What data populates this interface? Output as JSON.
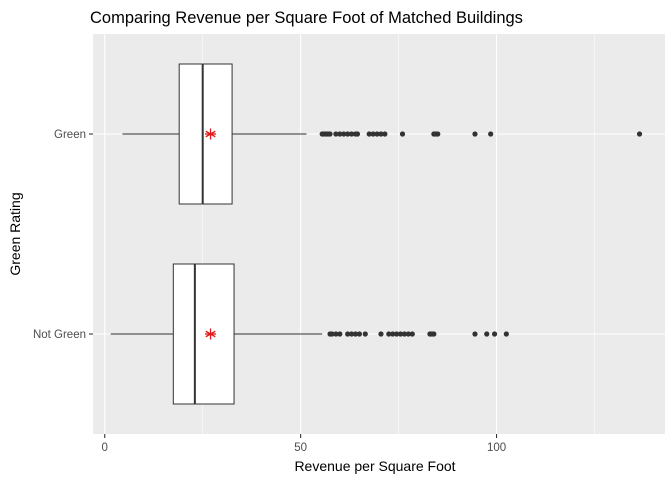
{
  "chart_data": {
    "type": "boxplot",
    "title": "Comparing Revenue per Square Foot of Matched Buildings",
    "xlabel": "Revenue per Square Foot",
    "ylabel": "Green Rating",
    "orientation": "horizontal",
    "xlim": [
      -3,
      143
    ],
    "x_ticks": [
      0,
      50,
      100
    ],
    "x_tick_labels": [
      "0",
      "50",
      "100"
    ],
    "grid": true,
    "panel_background": "#ebebeb",
    "grid_color": "#ffffff",
    "box_fill": "#ffffff",
    "box_stroke": "#333333",
    "outlier_color": "#333333",
    "mean_marker_color": "#e31a1c",
    "mean_marker": "asterisk",
    "categories": [
      "Green",
      "Not Green"
    ],
    "boxes": [
      {
        "category": "Green",
        "min": 4.5,
        "q1": 19.0,
        "median": 25.0,
        "q3": 32.5,
        "max": 51.5,
        "mean": 27.0,
        "outliers": [
          55.5,
          56.0,
          56.5,
          57.0,
          57.5,
          59.0,
          60.0,
          61.0,
          62.0,
          63.0,
          64.0,
          64.5,
          67.5,
          68.5,
          69.5,
          70.5,
          71.5,
          76.0,
          84.0,
          84.5,
          85.0,
          94.5,
          98.5,
          136.5
        ]
      },
      {
        "category": "Not Green",
        "min": 1.5,
        "q1": 17.5,
        "median": 23.0,
        "q3": 33.0,
        "max": 55.5,
        "mean": 27.0,
        "outliers": [
          57.5,
          58.0,
          59.0,
          60.0,
          62.0,
          63.0,
          64.0,
          65.0,
          66.5,
          70.5,
          72.5,
          73.5,
          74.5,
          75.5,
          76.5,
          77.5,
          78.5,
          83.0,
          83.5,
          84.0,
          94.5,
          97.5,
          99.5,
          102.5
        ]
      }
    ]
  }
}
